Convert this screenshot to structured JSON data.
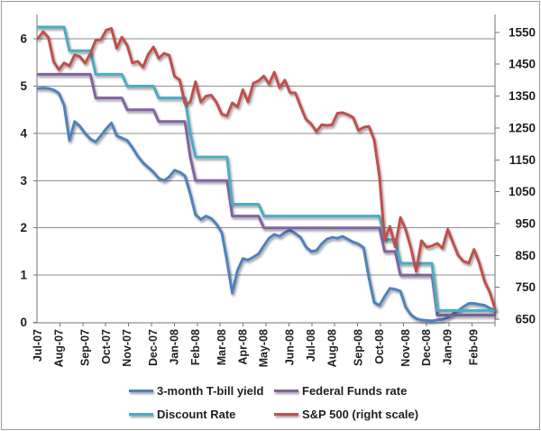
{
  "chart_data": {
    "type": "line",
    "title": "",
    "description": "US policy interest rates and 3-month T-bill yield (left scale, percent) vs S&P 500 (right scale), weekly, Jul-07 to Feb-09",
    "grid": "horizontal",
    "legend_position": "bottom",
    "weeks": 88,
    "x_axis": {
      "unit": "weekly",
      "labels": [
        "Jul-07",
        "Aug-07",
        "Sep-07",
        "Oct-07",
        "Nov-07",
        "Dec-07",
        "Jan-08",
        "Feb-08",
        "Mar-08",
        "Apr-08",
        "May-08",
        "Jun-08",
        "Jul-08",
        "Aug-08",
        "Sep-08",
        "Oct-08",
        "Nov-08",
        "Dec-08",
        "Jan-09",
        "Feb-09"
      ],
      "label_week_index": [
        0,
        4,
        9,
        13,
        17,
        22,
        26,
        30,
        35,
        39,
        43,
        48,
        52,
        56,
        61,
        65,
        70,
        74,
        78,
        83
      ]
    },
    "y_axis_left": {
      "ticks": [
        "0",
        "1",
        "2",
        "3",
        "4",
        "5",
        "6"
      ],
      "min": 0,
      "max": 6.5,
      "applies_to": "interest rates (%)"
    },
    "y_axis_right": {
      "ticks": [
        "650",
        "750",
        "850",
        "950",
        "1050",
        "1150",
        "1250",
        "1350",
        "1450",
        "1550"
      ],
      "min": 650,
      "max": 1550,
      "applies_to": "S&P 500 index level"
    },
    "series": [
      {
        "name": "3-month T-bill yield",
        "color": "#4F81BD",
        "axis": "left",
        "values": [
          4.95,
          4.96,
          4.95,
          4.92,
          4.85,
          4.6,
          3.85,
          4.25,
          4.15,
          4.0,
          3.88,
          3.82,
          3.95,
          4.1,
          4.22,
          3.95,
          3.9,
          3.85,
          3.7,
          3.52,
          3.38,
          3.28,
          3.18,
          3.05,
          3.0,
          3.08,
          3.22,
          3.18,
          3.1,
          2.72,
          2.28,
          2.18,
          2.25,
          2.2,
          2.08,
          1.9,
          1.3,
          0.62,
          1.1,
          1.35,
          1.32,
          1.38,
          1.45,
          1.62,
          1.78,
          1.86,
          1.82,
          1.9,
          1.95,
          1.88,
          1.8,
          1.6,
          1.5,
          1.52,
          1.66,
          1.76,
          1.8,
          1.78,
          1.82,
          1.76,
          1.7,
          1.66,
          1.58,
          0.95,
          0.42,
          0.36,
          0.55,
          0.72,
          0.7,
          0.66,
          0.32,
          0.16,
          0.08,
          0.05,
          0.04,
          0.03,
          0.05,
          0.06,
          0.1,
          0.18,
          0.25,
          0.33,
          0.4,
          0.4,
          0.38,
          0.36,
          0.3,
          0.25
        ]
      },
      {
        "name": "Federal Funds rate",
        "color": "#8064A2",
        "axis": "left",
        "values": [
          5.25,
          5.25,
          5.25,
          5.25,
          5.25,
          5.25,
          5.25,
          5.25,
          5.25,
          5.25,
          5.25,
          4.75,
          4.75,
          4.75,
          4.75,
          4.75,
          4.75,
          4.5,
          4.5,
          4.5,
          4.5,
          4.5,
          4.5,
          4.25,
          4.25,
          4.25,
          4.25,
          4.25,
          4.25,
          3.5,
          3.0,
          3.0,
          3.0,
          3.0,
          3.0,
          3.0,
          3.0,
          2.25,
          2.25,
          2.25,
          2.25,
          2.25,
          2.25,
          2.0,
          2.0,
          2.0,
          2.0,
          2.0,
          2.0,
          2.0,
          2.0,
          2.0,
          2.0,
          2.0,
          2.0,
          2.0,
          2.0,
          2.0,
          2.0,
          2.0,
          2.0,
          2.0,
          2.0,
          2.0,
          2.0,
          2.0,
          1.5,
          1.5,
          1.5,
          1.0,
          1.0,
          1.0,
          1.0,
          1.0,
          1.0,
          1.0,
          0.15,
          0.15,
          0.15,
          0.15,
          0.15,
          0.15,
          0.15,
          0.15,
          0.15,
          0.15,
          0.15,
          0.15
        ]
      },
      {
        "name": "Discount Rate",
        "color": "#4BACC6",
        "axis": "left",
        "values": [
          6.25,
          6.25,
          6.25,
          6.25,
          6.25,
          6.25,
          5.75,
          5.75,
          5.75,
          5.75,
          5.75,
          5.25,
          5.25,
          5.25,
          5.25,
          5.25,
          5.25,
          5.0,
          5.0,
          5.0,
          5.0,
          5.0,
          5.0,
          4.75,
          4.75,
          4.75,
          4.75,
          4.75,
          4.75,
          4.0,
          3.5,
          3.5,
          3.5,
          3.5,
          3.5,
          3.5,
          3.5,
          2.5,
          2.5,
          2.5,
          2.5,
          2.5,
          2.5,
          2.25,
          2.25,
          2.25,
          2.25,
          2.25,
          2.25,
          2.25,
          2.25,
          2.25,
          2.25,
          2.25,
          2.25,
          2.25,
          2.25,
          2.25,
          2.25,
          2.25,
          2.25,
          2.25,
          2.25,
          2.25,
          2.25,
          2.25,
          1.75,
          1.75,
          1.75,
          1.25,
          1.25,
          1.25,
          1.25,
          1.25,
          1.25,
          1.25,
          0.25,
          0.25,
          0.25,
          0.25,
          0.25,
          0.25,
          0.25,
          0.25,
          0.25,
          0.25,
          0.25,
          0.25
        ]
      },
      {
        "name": "S&P 500 (right scale)",
        "color": "#C0504D",
        "axis": "right",
        "values": [
          1530,
          1552,
          1534,
          1458,
          1433,
          1454,
          1445,
          1479,
          1474,
          1453,
          1484,
          1525,
          1527,
          1557,
          1562,
          1500,
          1535,
          1509,
          1454,
          1459,
          1441,
          1481,
          1504,
          1468,
          1484,
          1478,
          1412,
          1401,
          1325,
          1331,
          1395,
          1331,
          1350,
          1353,
          1330,
          1293,
          1288,
          1329,
          1316,
          1370,
          1332,
          1390,
          1398,
          1413,
          1388,
          1425,
          1376,
          1400,
          1361,
          1360,
          1318,
          1278,
          1263,
          1239,
          1260,
          1258,
          1260,
          1296,
          1298,
          1292,
          1283,
          1242,
          1252,
          1255,
          1213,
          1099,
          899,
          941,
          877,
          969,
          931,
          873,
          800,
          896,
          876,
          880,
          888,
          873,
          932,
          890,
          850,
          832,
          826,
          869,
          827,
          770,
          735,
          683
        ]
      }
    ],
    "style": {
      "grid_color": "#8f8f8f",
      "axis_color": "#767676",
      "tick_color": "#767676",
      "label_color": "#1f1f1f",
      "background": "#ffffff",
      "line_width": 3
    }
  }
}
